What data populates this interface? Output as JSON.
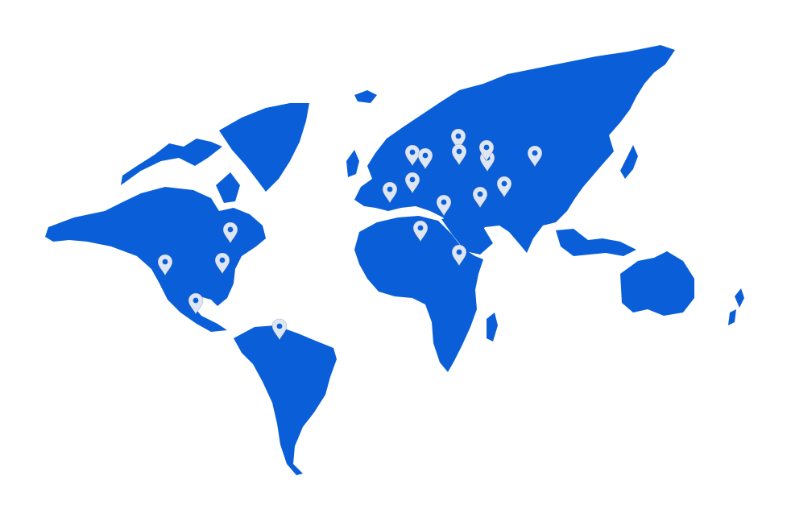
{
  "colors": {
    "background": "#ffffff",
    "land": "#0a5fd9",
    "pin": "#dfe6f3"
  },
  "map": {
    "type": "world-map",
    "marker_icon": "map-pin-icon",
    "marker_count": 19
  }
}
